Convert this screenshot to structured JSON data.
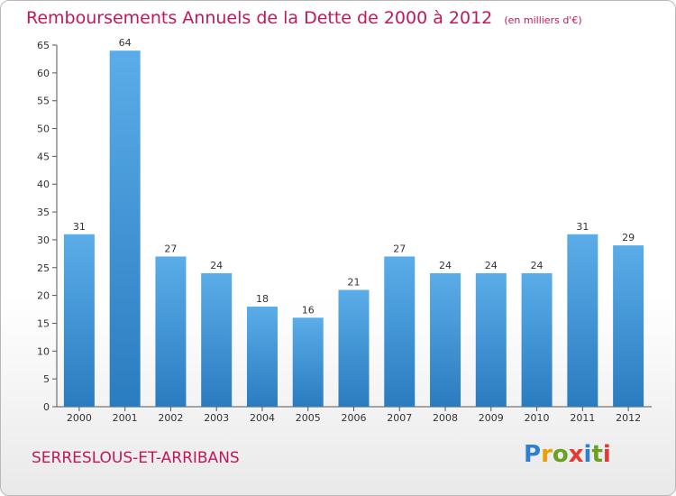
{
  "chart_data": {
    "type": "bar",
    "title": "Remboursements Annuels de la Dette de 2000 à 2012",
    "subtitle": "(en milliers d'€)",
    "categories": [
      "2000",
      "2001",
      "2002",
      "2003",
      "2004",
      "2005",
      "2006",
      "2007",
      "2008",
      "2009",
      "2010",
      "2011",
      "2012"
    ],
    "values": [
      31,
      64,
      27,
      24,
      18,
      16,
      21,
      27,
      24,
      24,
      24,
      31,
      29
    ],
    "ylim": [
      0,
      65
    ],
    "yticks": [
      0,
      5,
      10,
      15,
      20,
      25,
      30,
      35,
      40,
      45,
      50,
      55,
      60,
      65
    ],
    "grid": false,
    "bar_color_top": "#5aade8",
    "bar_color_bottom": "#2a7cc0"
  },
  "footer": {
    "commune": "SERRESLOUS-ET-ARRIBANS",
    "logo": "Proxiti"
  }
}
